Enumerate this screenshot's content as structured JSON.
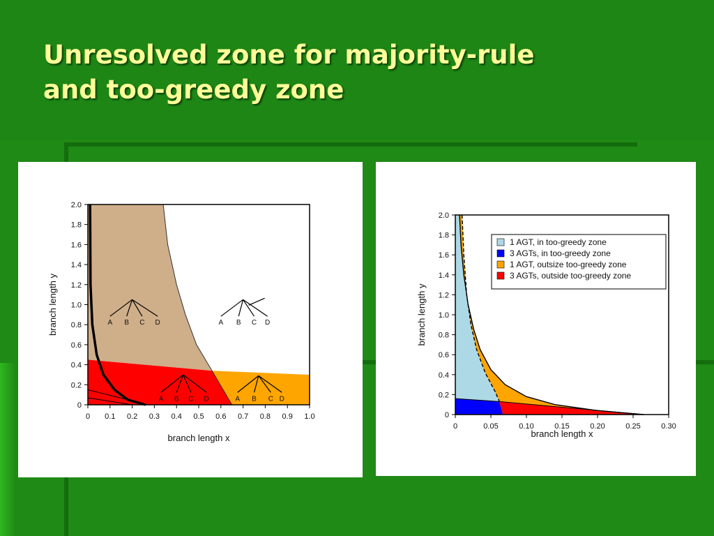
{
  "slide": {
    "title_line1": "Unresolved zone for majority-rule",
    "title_line2": "and too-greedy zone"
  },
  "colors": {
    "background": "#1f8a16",
    "title": "#ffff99",
    "tan": "#cfae8a",
    "red": "#ff0000",
    "orange": "#ffa500",
    "light_blue": "#add8e6",
    "blue": "#0000ff"
  },
  "chart_data": [
    {
      "type": "area",
      "title": "",
      "xlabel": "branch length x",
      "ylabel": "branch length y",
      "xlim": [
        0,
        1.0
      ],
      "ylim": [
        0,
        2.0
      ],
      "xticks": [
        "0",
        "0.1",
        "0.2",
        "0.3",
        "0.4",
        "0.5",
        "0.6",
        "0.7",
        "0.8",
        "0.9",
        "1.0"
      ],
      "yticks": [
        "0",
        "0.2",
        "0.4",
        "0.6",
        "0.8",
        "1.0",
        "1.2",
        "1.4",
        "1.6",
        "1.8",
        "2.0"
      ],
      "regions": [
        {
          "color": "tan",
          "description": "upper-left region bounded by the curve from (0.34, 2.0) to (0.56, 0.34)"
        },
        {
          "color": "red",
          "description": "lower band below y = 0.45 at x = 0 decreasing to 0.34 at x = 0.56, left of x = 0.65"
        },
        {
          "color": "orange",
          "description": "lower-right band up to y = 0.30 at x = 1.0"
        }
      ],
      "curves": {
        "tan_boundary": [
          [
            0.34,
            2.0
          ],
          [
            0.36,
            1.6
          ],
          [
            0.4,
            1.2
          ],
          [
            0.44,
            0.9
          ],
          [
            0.49,
            0.6
          ],
          [
            0.56,
            0.34
          ]
        ],
        "red_top": [
          [
            0.0,
            0.45
          ],
          [
            0.56,
            0.34
          ]
        ],
        "orange_top": [
          [
            0.56,
            0.34
          ],
          [
            1.0,
            0.3
          ]
        ],
        "bold_curve": [
          [
            0.01,
            2.0
          ],
          [
            0.012,
            1.2
          ],
          [
            0.02,
            0.8
          ],
          [
            0.04,
            0.5
          ],
          [
            0.07,
            0.3
          ],
          [
            0.12,
            0.15
          ],
          [
            0.18,
            0.05
          ],
          [
            0.26,
            0.0
          ]
        ],
        "thin_lines": [
          [
            [
              0.0,
              0.15
            ],
            [
              0.27,
              0.0
            ]
          ],
          [
            [
              0.0,
              0.07
            ],
            [
              0.2,
              0.0
            ]
          ]
        ]
      },
      "trees": [
        {
          "leaves": [
            "A",
            "B",
            "C",
            "D"
          ],
          "kind": "star-with-pair",
          "label_x": [
            0.1,
            0.175,
            0.245,
            0.315
          ],
          "label_y": 0.8,
          "apex": [
            0.2,
            1.05
          ]
        },
        {
          "leaves": [
            "A",
            "B",
            "C",
            "D"
          ],
          "kind": "caterpillar",
          "label_x": [
            0.6,
            0.68,
            0.75,
            0.81
          ],
          "label_y": 0.8,
          "apex": [
            0.7,
            1.05
          ]
        },
        {
          "leaves": [
            "A",
            "B",
            "C",
            "D"
          ],
          "kind": "star",
          "label_x": [
            0.33,
            0.4,
            0.465,
            0.535
          ],
          "label_y": 0.04,
          "apex": [
            0.43,
            0.3
          ]
        },
        {
          "leaves": [
            "A",
            "B",
            "C",
            "D"
          ],
          "kind": "star-with-pair",
          "label_x": [
            0.675,
            0.75,
            0.825,
            0.875
          ],
          "label_y": 0.04,
          "apex": [
            0.77,
            0.29
          ]
        }
      ]
    },
    {
      "type": "area",
      "title": "",
      "xlabel": "branch length x",
      "ylabel": "branch length y",
      "xlim": [
        0,
        0.3
      ],
      "ylim": [
        0,
        2.0
      ],
      "xticks": [
        "0",
        "0.05",
        "0.10",
        "0.15",
        "0.20",
        "0.25",
        "0.30"
      ],
      "yticks": [
        "0",
        "0.2",
        "0.4",
        "0.6",
        "0.8",
        "1.0",
        "1.2",
        "1.4",
        "1.6",
        "1.8",
        "2.0"
      ],
      "legend": {
        "position": "top-right",
        "entries": [
          {
            "label": "1 AGT, in too-greedy zone",
            "color": "light_blue"
          },
          {
            "label": "3 AGTs, in too-greedy zone",
            "color": "blue"
          },
          {
            "label": "1 AGT, outsize too-greedy zone",
            "color": "orange"
          },
          {
            "label": "3 AGTs, outside too-greedy zone",
            "color": "red"
          }
        ]
      },
      "curves": {
        "outer": [
          [
            0.006,
            2.0
          ],
          [
            0.008,
            1.7
          ],
          [
            0.012,
            1.4
          ],
          [
            0.018,
            1.1
          ],
          [
            0.026,
            0.85
          ],
          [
            0.035,
            0.65
          ],
          [
            0.05,
            0.45
          ],
          [
            0.07,
            0.3
          ],
          [
            0.1,
            0.18
          ],
          [
            0.14,
            0.1
          ],
          [
            0.2,
            0.04
          ],
          [
            0.265,
            0.0
          ]
        ],
        "dashed": [
          [
            0.0095,
            2.0
          ],
          [
            0.012,
            1.6
          ],
          [
            0.016,
            1.2
          ],
          [
            0.022,
            0.9
          ],
          [
            0.03,
            0.65
          ],
          [
            0.042,
            0.42
          ],
          [
            0.056,
            0.23
          ],
          [
            0.062,
            0.13
          ]
        ],
        "blue_top": [
          [
            0.0,
            0.16
          ],
          [
            0.062,
            0.13
          ]
        ],
        "red_top": [
          [
            0.062,
            0.13
          ],
          [
            0.265,
            0.0
          ]
        ],
        "red_bottom_left": [
          [
            0.067,
            0.0
          ],
          [
            0.062,
            0.13
          ]
        ]
      }
    }
  ]
}
